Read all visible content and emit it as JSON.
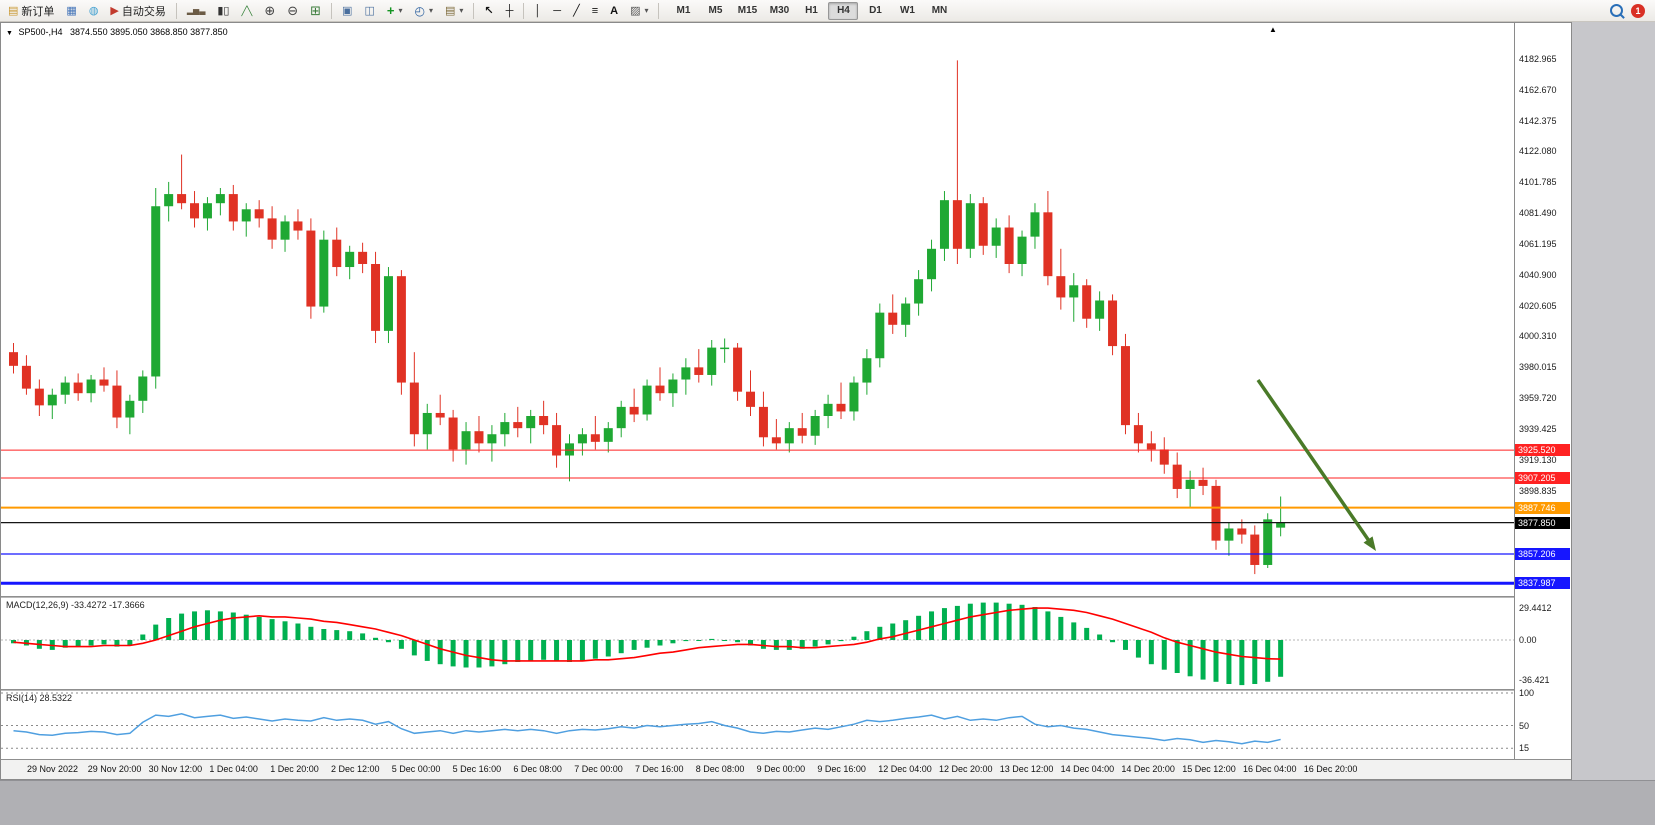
{
  "toolbar": {
    "new_order_label": "新订单",
    "autotrading_label": "自动交易",
    "timeframes": [
      "M1",
      "M5",
      "M15",
      "M30",
      "H1",
      "H4",
      "D1",
      "W1",
      "MN"
    ],
    "active_timeframe": "H4",
    "badge_count": "1"
  },
  "icons": {
    "new_order": "▤",
    "chart_window": "▦",
    "profile": "◍",
    "autotrading": "▶",
    "bar_chart": "▂▅▃",
    "candle_chart": "▮▯",
    "line_chart": "╱╲",
    "zoom_in": "⊕",
    "zoom_out": "⊖",
    "grid": "⊞",
    "tile": "▣",
    "cascade": "◫",
    "indicators": "+",
    "periods": "◴",
    "templates": "▤",
    "dropdown": "▾",
    "cursor": "↖",
    "crosshair": "┼",
    "vline": "│",
    "hline": "─",
    "trendline": "╱",
    "channel": "≡",
    "text_tool": "A",
    "shapes": "▨",
    "collapse": "▼",
    "shift_marker": "▲"
  },
  "chart_header": {
    "symbol_period": "SP500-,H4",
    "ohlc_text": "3874.550 3895.050 3868.850 3877.850"
  },
  "colors": {
    "up": "#1fa833",
    "down": "#e03224",
    "wick_up": "#1fa833",
    "wick_down": "#e03224",
    "macd_hist": "#00b050",
    "macd_signal": "#ff0000",
    "rsi_line": "#4f9fe0",
    "red": "#ff2222",
    "orange": "#ff9a00",
    "blue": "#1616ff",
    "black": "#151515",
    "arrow": "#4a7a28"
  },
  "price_axis": {
    "ticks": [
      4182.965,
      4162.67,
      4142.375,
      4122.08,
      4101.785,
      4081.49,
      4061.195,
      4040.9,
      4020.605,
      4000.31,
      3980.015,
      3959.72,
      3939.425,
      3919.13,
      3898.835,
      3878.54,
      3858.245,
      3837.95
    ]
  },
  "macd_panel": {
    "label_name": "MACD(12,26,9)",
    "label_values": "-33.4272 -17.3666",
    "axis": [
      {
        "label": "29.4412",
        "value": 29.4412
      },
      {
        "label": "0.00",
        "value": 0
      },
      {
        "label": "-36.421",
        "value": -36.421
      }
    ]
  },
  "rsi_panel": {
    "label_name": "RSI(14)",
    "label_values": "28.5322",
    "axis": [
      {
        "label": "100",
        "value": 100
      },
      {
        "label": "50",
        "value": 50
      },
      {
        "label": "15",
        "value": 15
      }
    ]
  },
  "chart_data": {
    "type": "candlestick",
    "symbol": "SP500-",
    "timeframe": "H4",
    "title": "SP500-,H4",
    "price_range": [
      3829,
      4205
    ],
    "last_ohlc": {
      "open": 3874.55,
      "high": 3895.05,
      "low": 3868.85,
      "close": 3877.85
    },
    "candles": [
      [
        3990,
        3996,
        3976,
        3981
      ],
      [
        3981,
        3988,
        3962,
        3966
      ],
      [
        3966,
        3972,
        3948,
        3955
      ],
      [
        3955,
        3966,
        3946,
        3962
      ],
      [
        3962,
        3974,
        3956,
        3970
      ],
      [
        3970,
        3976,
        3958,
        3963
      ],
      [
        3963,
        3975,
        3957,
        3972
      ],
      [
        3972,
        3980,
        3964,
        3968
      ],
      [
        3968,
        3978,
        3940,
        3947
      ],
      [
        3947,
        3962,
        3936,
        3958
      ],
      [
        3958,
        3978,
        3950,
        3974
      ],
      [
        3974,
        4098,
        3966,
        4086
      ],
      [
        4086,
        4102,
        4076,
        4094
      ],
      [
        4094,
        4120,
        4084,
        4088
      ],
      [
        4088,
        4096,
        4072,
        4078
      ],
      [
        4078,
        4092,
        4070,
        4088
      ],
      [
        4088,
        4098,
        4080,
        4094
      ],
      [
        4094,
        4100,
        4070,
        4076
      ],
      [
        4076,
        4088,
        4066,
        4084
      ],
      [
        4084,
        4090,
        4072,
        4078
      ],
      [
        4078,
        4086,
        4058,
        4064
      ],
      [
        4064,
        4080,
        4056,
        4076
      ],
      [
        4076,
        4084,
        4064,
        4070
      ],
      [
        4070,
        4078,
        4012,
        4020
      ],
      [
        4020,
        4070,
        4016,
        4064
      ],
      [
        4064,
        4072,
        4040,
        4046
      ],
      [
        4046,
        4060,
        4038,
        4056
      ],
      [
        4056,
        4062,
        4042,
        4048
      ],
      [
        4048,
        4056,
        3996,
        4004
      ],
      [
        4004,
        4046,
        3996,
        4040
      ],
      [
        4040,
        4044,
        3962,
        3970
      ],
      [
        3970,
        3990,
        3928,
        3936
      ],
      [
        3936,
        3956,
        3926,
        3950
      ],
      [
        3950,
        3962,
        3942,
        3947
      ],
      [
        3947,
        3952,
        3918,
        3926
      ],
      [
        3926,
        3944,
        3916,
        3938
      ],
      [
        3938,
        3948,
        3924,
        3930
      ],
      [
        3930,
        3942,
        3918,
        3936
      ],
      [
        3936,
        3950,
        3928,
        3944
      ],
      [
        3944,
        3954,
        3934,
        3940
      ],
      [
        3940,
        3952,
        3930,
        3948
      ],
      [
        3948,
        3958,
        3936,
        3942
      ],
      [
        3942,
        3950,
        3914,
        3922
      ],
      [
        3922,
        3936,
        3905,
        3930
      ],
      [
        3930,
        3940,
        3922,
        3936
      ],
      [
        3936,
        3948,
        3926,
        3931
      ],
      [
        3931,
        3944,
        3924,
        3940
      ],
      [
        3940,
        3958,
        3934,
        3954
      ],
      [
        3954,
        3966,
        3944,
        3949
      ],
      [
        3949,
        3972,
        3945,
        3968
      ],
      [
        3968,
        3980,
        3958,
        3963
      ],
      [
        3963,
        3976,
        3954,
        3972
      ],
      [
        3972,
        3986,
        3962,
        3980
      ],
      [
        3980,
        3992,
        3970,
        3975
      ],
      [
        3975,
        3998,
        3968,
        3993
      ],
      [
        3993,
        3999,
        3983,
        3993
      ],
      [
        3993,
        3996,
        3958,
        3964
      ],
      [
        3964,
        3978,
        3948,
        3954
      ],
      [
        3954,
        3964,
        3928,
        3934
      ],
      [
        3934,
        3946,
        3926,
        3930
      ],
      [
        3930,
        3944,
        3924,
        3940
      ],
      [
        3940,
        3950,
        3930,
        3935
      ],
      [
        3935,
        3952,
        3929,
        3948
      ],
      [
        3948,
        3962,
        3940,
        3956
      ],
      [
        3956,
        3970,
        3946,
        3951
      ],
      [
        3951,
        3974,
        3945,
        3970
      ],
      [
        3970,
        3992,
        3962,
        3986
      ],
      [
        3986,
        4022,
        3980,
        4016
      ],
      [
        4016,
        4028,
        4002,
        4008
      ],
      [
        4008,
        4026,
        4000,
        4022
      ],
      [
        4022,
        4044,
        4014,
        4038
      ],
      [
        4038,
        4064,
        4030,
        4058
      ],
      [
        4058,
        4096,
        4050,
        4090
      ],
      [
        4090,
        4182,
        4048,
        4058
      ],
      [
        4058,
        4094,
        4052,
        4088
      ],
      [
        4088,
        4092,
        4054,
        4060
      ],
      [
        4060,
        4078,
        4052,
        4072
      ],
      [
        4072,
        4080,
        4042,
        4048
      ],
      [
        4048,
        4070,
        4040,
        4066
      ],
      [
        4066,
        4088,
        4058,
        4082
      ],
      [
        4082,
        4096,
        4034,
        4040
      ],
      [
        4040,
        4058,
        4018,
        4026
      ],
      [
        4026,
        4042,
        4010,
        4034
      ],
      [
        4034,
        4038,
        4006,
        4012
      ],
      [
        4012,
        4030,
        4004,
        4024
      ],
      [
        4024,
        4028,
        3988,
        3994
      ],
      [
        3994,
        4002,
        3936,
        3942
      ],
      [
        3942,
        3950,
        3924,
        3930
      ],
      [
        3930,
        3938,
        3918,
        3926
      ],
      [
        3926,
        3934,
        3910,
        3916
      ],
      [
        3916,
        3924,
        3894,
        3900
      ],
      [
        3900,
        3912,
        3888,
        3906
      ],
      [
        3906,
        3914,
        3896,
        3902
      ],
      [
        3902,
        3906,
        3860,
        3866
      ],
      [
        3866,
        3878,
        3856,
        3874
      ],
      [
        3874,
        3880,
        3864,
        3870
      ],
      [
        3870,
        3876,
        3844,
        3850
      ],
      [
        3850,
        3884,
        3848,
        3880
      ],
      [
        3874.55,
        3895.05,
        3868.85,
        3877.85
      ]
    ],
    "levels": [
      {
        "price": 3925.52,
        "color": "red",
        "width": 1,
        "badge": "red"
      },
      {
        "price": 3907.205,
        "color": "red",
        "width": 1,
        "badge": "red"
      },
      {
        "price": 3887.746,
        "color": "orange",
        "width": 2,
        "badge": "orange"
      },
      {
        "price": 3877.85,
        "color": "black",
        "width": 1.2,
        "badge": "black",
        "type": "current-price"
      },
      {
        "price": 3857.206,
        "color": "blue",
        "width": 1.2,
        "badge": "blue"
      },
      {
        "price": 3837.987,
        "color": "blue",
        "width": 3,
        "badge": "blue"
      }
    ],
    "annotations": [
      {
        "type": "arrow",
        "from": [
          1257,
          379
        ],
        "to": [
          1375,
          550
        ],
        "color": "#4a7a28"
      }
    ],
    "indicators": {
      "macd": {
        "params": "12,26,9",
        "last_main": -33.4272,
        "last_signal": -17.3666,
        "histogram": [
          -3,
          -5,
          -8,
          -9,
          -7,
          -6,
          -5,
          -4,
          -6,
          -5,
          5,
          14,
          20,
          24,
          26,
          27,
          26,
          25,
          23,
          21,
          19,
          17,
          15,
          12,
          10,
          9,
          8,
          6,
          2,
          -2,
          -8,
          -14,
          -19,
          -22,
          -24,
          -25,
          -25,
          -24,
          -22,
          -20,
          -19,
          -18,
          -19,
          -20,
          -19,
          -17,
          -15,
          -12,
          -9,
          -7,
          -5,
          -3,
          -1,
          0,
          1,
          0,
          -2,
          -5,
          -8,
          -9,
          -9,
          -8,
          -6,
          -4,
          -1,
          3,
          8,
          12,
          15,
          18,
          22,
          26,
          29,
          31,
          33,
          34,
          34,
          33,
          32,
          30,
          26,
          21,
          16,
          11,
          5,
          -2,
          -9,
          -16,
          -22,
          -27,
          -30,
          -33,
          -36,
          -38,
          -40,
          -41,
          -40,
          -38,
          -33.43
        ],
        "signal": [
          -2,
          -3,
          -4,
          -5,
          -6,
          -6,
          -6,
          -5,
          -5,
          -5,
          -3,
          0,
          4,
          8,
          12,
          15,
          18,
          20,
          21,
          22,
          21,
          21,
          20,
          19,
          17,
          16,
          14,
          12,
          10,
          7,
          4,
          0,
          -4,
          -8,
          -11,
          -14,
          -16,
          -18,
          -19,
          -19,
          -19,
          -19,
          -19,
          -19,
          -19,
          -18,
          -18,
          -17,
          -16,
          -14,
          -12,
          -11,
          -9,
          -7,
          -6,
          -5,
          -4,
          -4,
          -5,
          -6,
          -6,
          -7,
          -7,
          -6,
          -5,
          -4,
          -2,
          1,
          3,
          6,
          9,
          12,
          15,
          18,
          21,
          23,
          25,
          27,
          28,
          29,
          29,
          28,
          27,
          25,
          22,
          19,
          15,
          11,
          7,
          2,
          -2,
          -5,
          -8,
          -11,
          -13,
          -15,
          -16,
          -17,
          -17.37
        ]
      },
      "rsi": {
        "params": "14",
        "last": 28.5322,
        "values": [
          42,
          40,
          36,
          35,
          38,
          39,
          41,
          40,
          36,
          38,
          55,
          66,
          64,
          68,
          62,
          64,
          66,
          61,
          63,
          60,
          57,
          60,
          58,
          57,
          62,
          58,
          60,
          58,
          52,
          56,
          45,
          38,
          40,
          42,
          38,
          42,
          40,
          42,
          44,
          42,
          44,
          42,
          38,
          42,
          44,
          43,
          45,
          48,
          46,
          50,
          48,
          50,
          52,
          53,
          56,
          50,
          46,
          40,
          38,
          41,
          40,
          43,
          46,
          44,
          48,
          52,
          58,
          56,
          58,
          61,
          63,
          66,
          60,
          64,
          58,
          60,
          58,
          62,
          64,
          52,
          48,
          50,
          46,
          44,
          40,
          36,
          34,
          32,
          30,
          27,
          30,
          28,
          24,
          27,
          25,
          22,
          26,
          24,
          28.53
        ]
      }
    },
    "time_labels": [
      "29 Nov 2022",
      "29 Nov 20:00",
      "30 Nov 12:00",
      "1 Dec 04:00",
      "1 Dec 20:00",
      "2 Dec 12:00",
      "5 Dec 00:00",
      "5 Dec 16:00",
      "6 Dec 08:00",
      "7 Dec 00:00",
      "7 Dec 16:00",
      "8 Dec 08:00",
      "9 Dec 00:00",
      "9 Dec 16:00",
      "12 Dec 04:00",
      "12 Dec 20:00",
      "13 Dec 12:00",
      "14 Dec 04:00",
      "14 Dec 20:00",
      "15 Dec 12:00",
      "16 Dec 04:00",
      "16 Dec 20:00"
    ]
  }
}
